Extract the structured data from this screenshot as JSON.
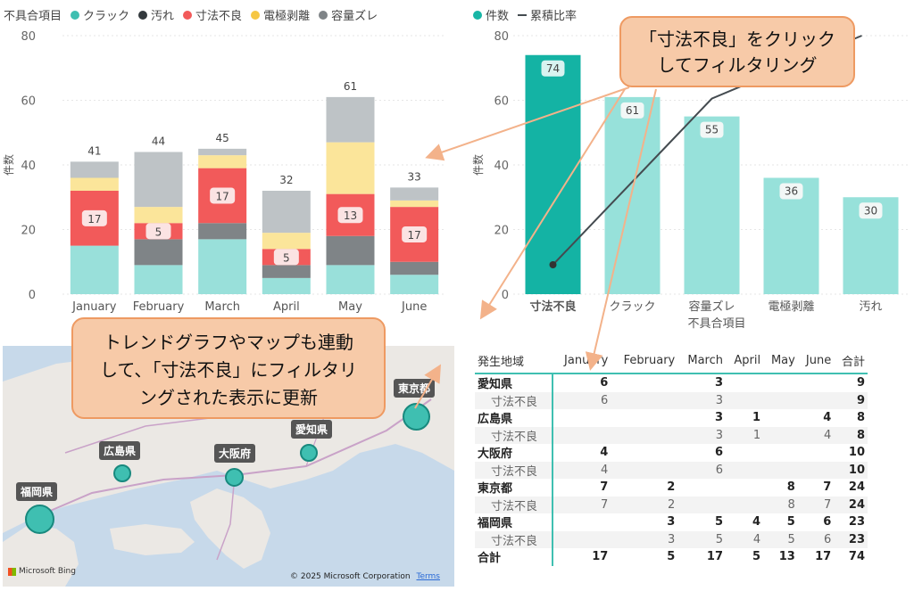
{
  "left_chart": {
    "legend_title": "不具合項目",
    "ylabel": "件数",
    "yticks": [
      "0",
      "20",
      "40",
      "60",
      "80"
    ],
    "categories": [
      "January",
      "February",
      "March",
      "April",
      "May",
      "June"
    ],
    "totals": [
      "41",
      "44",
      "45",
      "32",
      "61",
      "33"
    ],
    "callout_values": [
      "17",
      "5",
      "17",
      "5",
      "13",
      "17"
    ],
    "series": [
      {
        "name": "クラック",
        "color": "#99e0da",
        "values": [
          15,
          9,
          17,
          5,
          9,
          6
        ]
      },
      {
        "name": "汚れ",
        "color": "#7f8487",
        "values": [
          0,
          8,
          5,
          4,
          9,
          4
        ]
      },
      {
        "name": "寸法不良",
        "color": "#f25a5a",
        "values": [
          17,
          5,
          17,
          5,
          13,
          17
        ]
      },
      {
        "name": "電極剥離",
        "color": "#fbe59a",
        "values": [
          4,
          5,
          4,
          5,
          16,
          2
        ]
      },
      {
        "name": "容量ズレ",
        "color": "#bec3c6",
        "values": [
          5,
          17,
          2,
          13,
          14,
          4
        ]
      }
    ]
  },
  "right_chart": {
    "legend": [
      {
        "name": "件数",
        "color": "#18b6a6"
      },
      {
        "name": "累積比率",
        "color": "#444b50"
      }
    ],
    "ylabel": "件数",
    "xlabel": "不具合項目",
    "yticks": [
      "0",
      "20",
      "40",
      "60",
      "80"
    ],
    "categories": [
      "寸法不良",
      "クラック",
      "容量ズレ",
      "電極剥離",
      "汚れ"
    ],
    "values": [
      74,
      61,
      55,
      36,
      30
    ],
    "labels": [
      "74",
      "61",
      "55",
      "36",
      "30"
    ],
    "highlight_color": "#14b3a4",
    "bar_color": "#97e1da"
  },
  "map": {
    "pins": [
      "東京都",
      "愛知県",
      "大阪府",
      "広島県",
      "福岡県"
    ],
    "bing": "Microsoft Bing",
    "copyright": "© 2025 Microsoft Corporation",
    "terms": "Terms"
  },
  "callouts": {
    "top": [
      "「寸法不良」をクリック",
      "してフィルタリング"
    ],
    "bottom": [
      "トレンドグラフやマップも連動",
      "して、「寸法不良」にフィルタリ",
      "ングされた表示に更新"
    ]
  },
  "matrix": {
    "headers": [
      "発生地域",
      "January",
      "February",
      "March",
      "April",
      "May",
      "June",
      "合計"
    ],
    "rows": [
      {
        "type": "parent",
        "cells": [
          "愛知県",
          "6",
          "",
          "3",
          "",
          "",
          "",
          "9"
        ]
      },
      {
        "type": "child",
        "cells": [
          "寸法不良",
          "6",
          "",
          "3",
          "",
          "",
          "",
          "9"
        ]
      },
      {
        "type": "parent",
        "cells": [
          "広島県",
          "",
          "",
          "3",
          "1",
          "",
          "4",
          "8"
        ]
      },
      {
        "type": "child",
        "cells": [
          "寸法不良",
          "",
          "",
          "3",
          "1",
          "",
          "4",
          "8"
        ]
      },
      {
        "type": "parent",
        "cells": [
          "大阪府",
          "4",
          "",
          "6",
          "",
          "",
          "",
          "10"
        ]
      },
      {
        "type": "child",
        "cells": [
          "寸法不良",
          "4",
          "",
          "6",
          "",
          "",
          "",
          "10"
        ]
      },
      {
        "type": "parent",
        "cells": [
          "東京都",
          "7",
          "2",
          "",
          "",
          "8",
          "7",
          "24"
        ]
      },
      {
        "type": "child",
        "cells": [
          "寸法不良",
          "7",
          "2",
          "",
          "",
          "8",
          "7",
          "24"
        ]
      },
      {
        "type": "parent",
        "cells": [
          "福岡県",
          "",
          "3",
          "5",
          "4",
          "5",
          "6",
          "23"
        ]
      },
      {
        "type": "child",
        "cells": [
          "寸法不良",
          "",
          "3",
          "5",
          "4",
          "5",
          "6",
          "23"
        ]
      },
      {
        "type": "total",
        "cells": [
          "合計",
          "17",
          "5",
          "17",
          "5",
          "13",
          "17",
          "74"
        ]
      }
    ]
  }
}
